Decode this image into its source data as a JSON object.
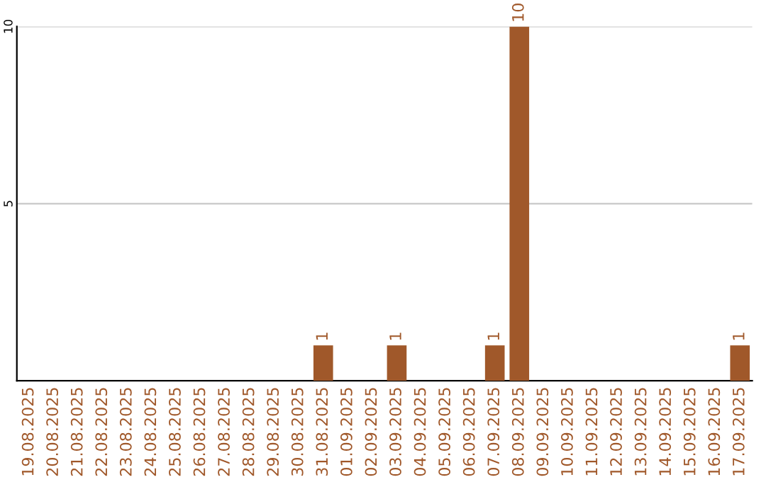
{
  "chart_data": {
    "type": "bar",
    "categories": [
      "19.08.2025",
      "20.08.2025",
      "21.08.2025",
      "22.08.2025",
      "23.08.2025",
      "24.08.2025",
      "25.08.2025",
      "26.08.2025",
      "27.08.2025",
      "28.08.2025",
      "29.08.2025",
      "30.08.2025",
      "31.08.2025",
      "01.09.2025",
      "02.09.2025",
      "03.09.2025",
      "04.09.2025",
      "05.09.2025",
      "06.09.2025",
      "07.09.2025",
      "08.09.2025",
      "09.09.2025",
      "10.09.2025",
      "11.09.2025",
      "12.09.2025",
      "13.09.2025",
      "14.09.2025",
      "15.09.2025",
      "16.09.2025",
      "17.09.2025"
    ],
    "values": [
      0,
      0,
      0,
      0,
      0,
      0,
      0,
      0,
      0,
      0,
      0,
      0,
      1,
      0,
      0,
      1,
      0,
      0,
      0,
      1,
      10,
      0,
      0,
      0,
      0,
      0,
      0,
      0,
      0,
      1
    ],
    "value_labels": [
      null,
      null,
      null,
      null,
      null,
      null,
      null,
      null,
      null,
      null,
      null,
      null,
      "1",
      null,
      null,
      "1",
      null,
      null,
      null,
      "1",
      "10",
      null,
      null,
      null,
      null,
      null,
      null,
      null,
      null,
      "1"
    ],
    "color": "#a0582a",
    "ylim": [
      0,
      10
    ],
    "yticks": [
      5,
      10
    ],
    "grid": "y"
  }
}
